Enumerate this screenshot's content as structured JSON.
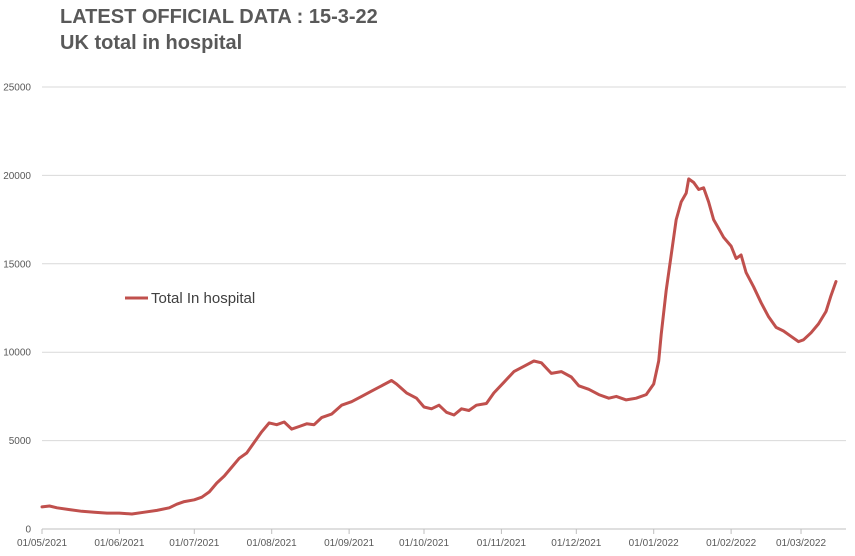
{
  "title_line1": "LATEST OFFICIAL DATA : 15-3-22",
  "title_line2": "UK total in hospital",
  "chart_data": {
    "type": "line",
    "title": "LATEST OFFICIAL DATA : 15-3-22",
    "subtitle": "UK total in hospital",
    "xlabel": "",
    "ylabel": "",
    "ylim": [
      0,
      25000
    ],
    "yticks": [
      0,
      5000,
      10000,
      15000,
      20000,
      25000
    ],
    "xlim": [
      "2021-05-01",
      "2022-03-15"
    ],
    "xtick_labels": [
      "01/05/2021",
      "01/06/2021",
      "01/07/2021",
      "01/08/2021",
      "01/09/2021",
      "01/10/2021",
      "01/11/2021",
      "01/12/2021",
      "01/01/2022",
      "01/02/2022",
      "01/03/2022"
    ],
    "xtick_dates": [
      "2021-05-01",
      "2021-06-01",
      "2021-07-01",
      "2021-08-01",
      "2021-09-01",
      "2021-10-01",
      "2021-11-01",
      "2021-12-01",
      "2022-01-01",
      "2022-02-01",
      "2022-03-01"
    ],
    "grid": true,
    "legend_placement": "center-left",
    "series": [
      {
        "name": "Total In hospital",
        "color": "#c0504d",
        "points": [
          [
            "2021-05-01",
            1250
          ],
          [
            "2021-05-04",
            1300
          ],
          [
            "2021-05-07",
            1200
          ],
          [
            "2021-05-12",
            1100
          ],
          [
            "2021-05-17",
            1000
          ],
          [
            "2021-05-22",
            950
          ],
          [
            "2021-05-27",
            900
          ],
          [
            "2021-06-01",
            900
          ],
          [
            "2021-06-06",
            850
          ],
          [
            "2021-06-11",
            950
          ],
          [
            "2021-06-16",
            1050
          ],
          [
            "2021-06-21",
            1200
          ],
          [
            "2021-06-24",
            1400
          ],
          [
            "2021-06-27",
            1550
          ],
          [
            "2021-07-01",
            1650
          ],
          [
            "2021-07-04",
            1800
          ],
          [
            "2021-07-07",
            2100
          ],
          [
            "2021-07-10",
            2600
          ],
          [
            "2021-07-13",
            3000
          ],
          [
            "2021-07-16",
            3500
          ],
          [
            "2021-07-19",
            4000
          ],
          [
            "2021-07-22",
            4300
          ],
          [
            "2021-07-25",
            4900
          ],
          [
            "2021-07-28",
            5500
          ],
          [
            "2021-07-31",
            6000
          ],
          [
            "2021-08-03",
            5900
          ],
          [
            "2021-08-06",
            6050
          ],
          [
            "2021-08-09",
            5650
          ],
          [
            "2021-08-12",
            5800
          ],
          [
            "2021-08-15",
            5950
          ],
          [
            "2021-08-18",
            5900
          ],
          [
            "2021-08-21",
            6300
          ],
          [
            "2021-08-25",
            6500
          ],
          [
            "2021-08-29",
            7000
          ],
          [
            "2021-09-02",
            7200
          ],
          [
            "2021-09-06",
            7500
          ],
          [
            "2021-09-10",
            7800
          ],
          [
            "2021-09-14",
            8100
          ],
          [
            "2021-09-18",
            8400
          ],
          [
            "2021-09-20",
            8200
          ],
          [
            "2021-09-24",
            7700
          ],
          [
            "2021-09-28",
            7400
          ],
          [
            "2021-10-01",
            6900
          ],
          [
            "2021-10-04",
            6800
          ],
          [
            "2021-10-07",
            7000
          ],
          [
            "2021-10-10",
            6600
          ],
          [
            "2021-10-13",
            6450
          ],
          [
            "2021-10-16",
            6800
          ],
          [
            "2021-10-19",
            6700
          ],
          [
            "2021-10-22",
            7000
          ],
          [
            "2021-10-26",
            7100
          ],
          [
            "2021-10-29",
            7700
          ],
          [
            "2021-11-02",
            8300
          ],
          [
            "2021-11-06",
            8900
          ],
          [
            "2021-11-10",
            9200
          ],
          [
            "2021-11-14",
            9500
          ],
          [
            "2021-11-17",
            9400
          ],
          [
            "2021-11-21",
            8800
          ],
          [
            "2021-11-25",
            8900
          ],
          [
            "2021-11-29",
            8600
          ],
          [
            "2021-12-02",
            8100
          ],
          [
            "2021-12-06",
            7900
          ],
          [
            "2021-12-10",
            7600
          ],
          [
            "2021-12-14",
            7400
          ],
          [
            "2021-12-17",
            7500
          ],
          [
            "2021-12-21",
            7300
          ],
          [
            "2021-12-25",
            7400
          ],
          [
            "2021-12-29",
            7600
          ],
          [
            "2022-01-01",
            8200
          ],
          [
            "2022-01-03",
            9500
          ],
          [
            "2022-01-04",
            11000
          ],
          [
            "2022-01-06",
            13500
          ],
          [
            "2022-01-08",
            15500
          ],
          [
            "2022-01-10",
            17500
          ],
          [
            "2022-01-12",
            18500
          ],
          [
            "2022-01-14",
            19000
          ],
          [
            "2022-01-15",
            19800
          ],
          [
            "2022-01-17",
            19600
          ],
          [
            "2022-01-19",
            19200
          ],
          [
            "2022-01-21",
            19300
          ],
          [
            "2022-01-23",
            18500
          ],
          [
            "2022-01-25",
            17500
          ],
          [
            "2022-01-27",
            17000
          ],
          [
            "2022-01-29",
            16500
          ],
          [
            "2022-02-01",
            16000
          ],
          [
            "2022-02-03",
            15300
          ],
          [
            "2022-02-05",
            15500
          ],
          [
            "2022-02-07",
            14500
          ],
          [
            "2022-02-10",
            13700
          ],
          [
            "2022-02-13",
            12800
          ],
          [
            "2022-02-16",
            12000
          ],
          [
            "2022-02-19",
            11400
          ],
          [
            "2022-02-22",
            11200
          ],
          [
            "2022-02-25",
            10900
          ],
          [
            "2022-02-28",
            10600
          ],
          [
            "2022-03-02",
            10700
          ],
          [
            "2022-03-05",
            11100
          ],
          [
            "2022-03-08",
            11600
          ],
          [
            "2022-03-11",
            12300
          ],
          [
            "2022-03-13",
            13200
          ],
          [
            "2022-03-15",
            14000
          ]
        ]
      }
    ]
  }
}
